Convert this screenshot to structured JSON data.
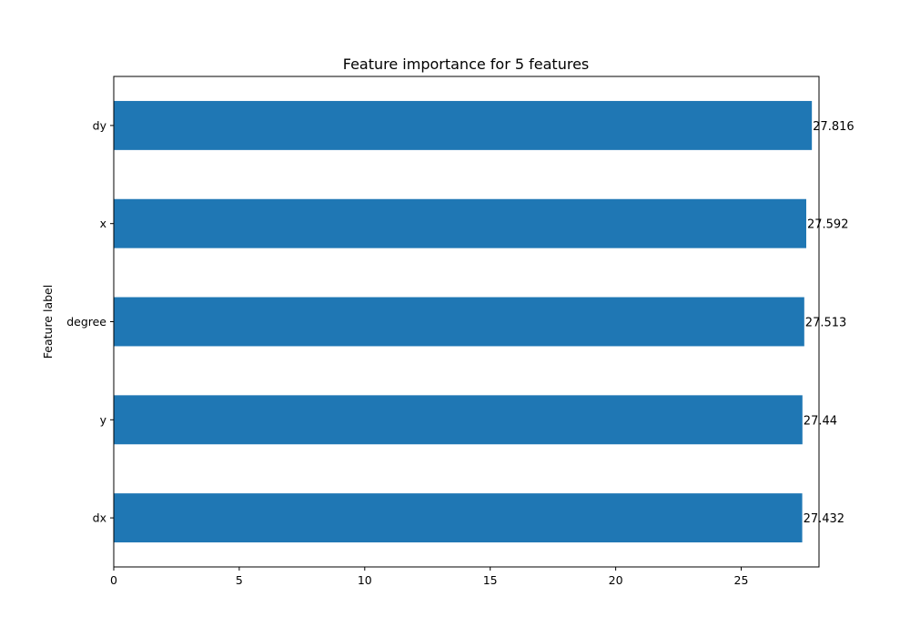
{
  "chart_data": {
    "type": "bar",
    "orientation": "horizontal",
    "title": "Feature importance for 5 features",
    "xlabel": "",
    "ylabel": "Feature label",
    "categories": [
      "dy",
      "x",
      "degree",
      "y",
      "dx"
    ],
    "values": [
      27.816,
      27.592,
      27.513,
      27.44,
      27.432
    ],
    "value_labels": [
      "27.816",
      "27.592",
      "27.513",
      "27.44",
      "27.432"
    ],
    "xlim": [
      0,
      28.1
    ],
    "xticks": [
      0,
      5,
      10,
      15,
      20,
      25
    ],
    "grid": false,
    "bar_color": "#1f77b4"
  }
}
